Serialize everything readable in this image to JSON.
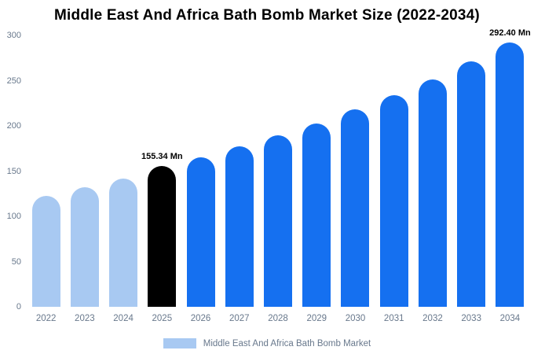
{
  "chart_data": {
    "type": "bar",
    "title": "Middle East And Africa Bath Bomb Market Size (2022-2034)",
    "categories": [
      "2022",
      "2023",
      "2024",
      "2025",
      "2026",
      "2027",
      "2028",
      "2029",
      "2030",
      "2031",
      "2032",
      "2033",
      "2034"
    ],
    "values": [
      123,
      132,
      142,
      155.34,
      165,
      177,
      190,
      203,
      218,
      234,
      251,
      271,
      292.4
    ],
    "unit": "Mn",
    "xlabel": "",
    "ylabel": "",
    "ylim": [
      0,
      300
    ],
    "yticks": [
      0,
      50,
      100,
      150,
      200,
      250,
      300
    ],
    "grid": false,
    "legend_position": "bottom",
    "colors": {
      "historical": "#a8c9f2",
      "current": "#000000",
      "forecast": "#1570f0"
    },
    "bar_color_roles": [
      "historical",
      "historical",
      "historical",
      "current",
      "forecast",
      "forecast",
      "forecast",
      "forecast",
      "forecast",
      "forecast",
      "forecast",
      "forecast",
      "forecast"
    ],
    "annotations": [
      {
        "category": "2025",
        "text": "155.34 Mn"
      },
      {
        "category": "2034",
        "text": "292.40 Mn"
      }
    ],
    "legend": [
      {
        "label": "Middle East And Africa Bath Bomb Market",
        "color": "#a8c9f2"
      }
    ]
  }
}
